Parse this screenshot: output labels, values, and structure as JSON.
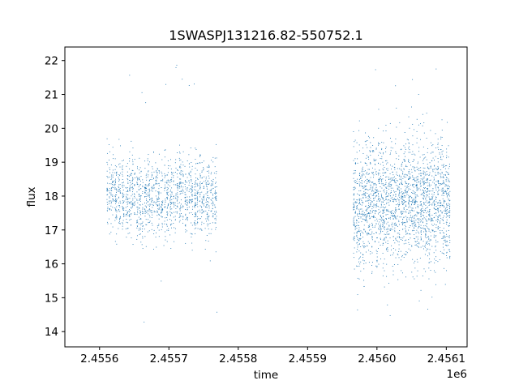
{
  "chart_data": {
    "type": "scatter",
    "title": "1SWASPJ131216.82-550752.1",
    "xlabel": "time",
    "ylabel": "flux",
    "x_offset_label": "1e6",
    "xlim": [
      2.45555,
      2.45613
    ],
    "ylim": [
      13.55,
      22.4
    ],
    "x_ticks": [
      2.4556,
      2.4557,
      2.4558,
      2.4559,
      2.456,
      2.4561
    ],
    "x_tick_labels": [
      "2.4556",
      "2.4557",
      "2.4558",
      "2.4559",
      "2.4560",
      "2.4561"
    ],
    "y_ticks": [
      14,
      15,
      16,
      17,
      18,
      19,
      20,
      21,
      22
    ],
    "y_tick_labels": [
      "14",
      "15",
      "16",
      "17",
      "18",
      "19",
      "20",
      "21",
      "22"
    ],
    "grid": false,
    "legend": "none",
    "marker_color": "#1f77b4",
    "series": [
      {
        "segments": [
          {
            "x_start": 2.45561,
            "x_end": 2.45577,
            "flux_center": 18.0,
            "flux_spread": 0.55,
            "outlier_range": [
              13.9,
              21.9
            ]
          },
          {
            "x_start": 2.455965,
            "x_end": 2.456105,
            "flux_center": 17.8,
            "flux_spread": 0.85,
            "outlier_range": [
              14.1,
              22.0
            ]
          }
        ]
      }
    ]
  }
}
